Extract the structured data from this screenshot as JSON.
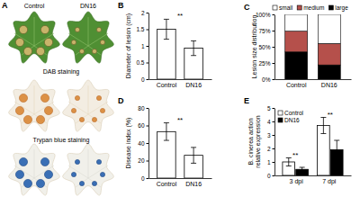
{
  "photo_panel": {
    "label": "A",
    "columns": [
      "Control",
      "DN16"
    ],
    "rows": [
      "DAB staining",
      "Trypan blue staining"
    ]
  },
  "chart_data": [
    {
      "type": "bar",
      "label": "B",
      "ylabel": "Diameter of lesion (cm)",
      "categories": [
        "Control",
        "DN16"
      ],
      "values": [
        1.5,
        0.93
      ],
      "errors": [
        0.3,
        0.22
      ],
      "color": "#ffffff",
      "ylim": [
        0,
        2
      ],
      "yticks": [
        0,
        0.5,
        1,
        1.5,
        2
      ],
      "significance": "**"
    },
    {
      "type": "bar",
      "label": "C",
      "ylabel": "Lesion size distribution",
      "categories": [
        "Control",
        "DN16"
      ],
      "stacked": true,
      "legend": "top",
      "series": [
        {
          "name": "small",
          "color": "#ffffff",
          "values": [
            26,
            45
          ]
        },
        {
          "name": "medium",
          "color": "#b5504b",
          "values": [
            32,
            33
          ]
        },
        {
          "name": "large",
          "color": "#000000",
          "values": [
            42,
            22
          ]
        }
      ],
      "ylim": [
        0,
        100
      ],
      "yticks": [
        {
          "value": 0,
          "label": "0%"
        },
        {
          "value": 25,
          "label": "25%"
        },
        {
          "value": 50,
          "label": "50%"
        },
        {
          "value": 75,
          "label": "75%"
        },
        {
          "value": 100,
          "label": "100%"
        }
      ]
    },
    {
      "type": "bar",
      "label": "D",
      "ylabel": "Disease index (%)",
      "categories": [
        "Control",
        "DN16"
      ],
      "values": [
        53,
        26
      ],
      "errors": [
        10,
        9
      ],
      "color": "#ffffff",
      "ylim": [
        0,
        80
      ],
      "yticks": [
        0,
        20,
        40,
        60,
        80
      ],
      "significance": "**"
    },
    {
      "type": "bar",
      "label": "E",
      "ylabel": [
        "B. cinerea action",
        "relative expression"
      ],
      "categories": [
        "3 dpi",
        "7 dpi"
      ],
      "legend": "upper left",
      "series": [
        {
          "name": "Control",
          "color": "#ffffff",
          "values": [
            1.0,
            3.7
          ],
          "errors": [
            0.3,
            0.6
          ]
        },
        {
          "name": "DN16",
          "color": "#000000",
          "values": [
            0.45,
            1.9
          ],
          "errors": [
            0.15,
            0.7
          ]
        }
      ],
      "ylim": [
        0,
        5
      ],
      "yticks": [
        0,
        1,
        2,
        3,
        4,
        5
      ],
      "significance": [
        "**",
        "**"
      ]
    }
  ]
}
